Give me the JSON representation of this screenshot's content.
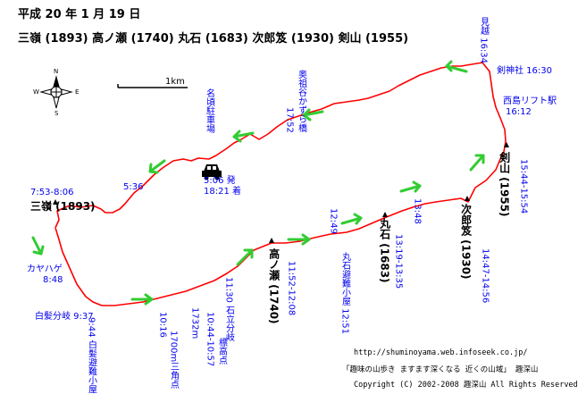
{
  "header": {
    "date": "平成 20 年 1 月 19 日",
    "route": "三嶺 (1893) 高ノ瀬 (1740) 丸石 (1683) 次郎笈 (1930) 剣山 (1955)"
  },
  "compass": {
    "n": "N",
    "s": "S",
    "e": "E",
    "w": "W"
  },
  "scale": {
    "label": "1km"
  },
  "peaks": {
    "sanrei": "三嶺 (1893)",
    "takanose": "高ノ瀬 (1740)",
    "maruishi": "丸石 (1683)",
    "jirogyu": "次郎笈 (1930)",
    "tsurugi": "剣山 (1955)"
  },
  "times": {
    "sanrei": "7:53-8:06",
    "kayahage_time": "8:48",
    "kayahage_name": "カヤハゲ",
    "shiraga_bunki": "白髪分岐 9:37",
    "shiraga_hut": "9:44 白髪避難小屋",
    "tri_time": "10:16",
    "tri_name": "1700m三角点",
    "point1732": "1732m",
    "hyoko_time": "10:44-10:57",
    "hyoko_name": "標高点",
    "ishidate": "11:30 石立分岐",
    "takanose": "11:52-12:08",
    "maruishi_hut": "丸石避難小屋 12:51",
    "t1249": "12:49",
    "maruishi": "13:19-13:35",
    "t1348": "13:48",
    "jirogyu": "14:47-14:56",
    "tsurugi": "15:44-15:54",
    "nishijima_name": "西島リフト駅",
    "nishijima_time": "16:12",
    "jinja": "剣神社 16:30",
    "mikoshi": "見越 16:34",
    "kazurabashi_time": "17:52",
    "kazurabashi_name": "奥祖谷かずら橋",
    "parking": "名頃駐車場",
    "depart_time": "5:06 発",
    "arrive_time": "18:21 着",
    "t536": "5:36"
  },
  "footer": {
    "url": "http://shuminoyama.web.infoseek.co.jp/",
    "site": "「趣味の山歩き ますます深くなる 近くの山域」 趣深山",
    "copyright": "Copyright (C) 2002-2008 趣深山 All Rights Reserved"
  },
  "colors": {
    "route": "#ff0000",
    "label": "#0000ee",
    "arrow": "#33cc33",
    "peak": "#000000"
  },
  "icons": {
    "car": "car-icon",
    "compass": "compass-rose-icon",
    "arrow": "direction-arrow-icon"
  }
}
